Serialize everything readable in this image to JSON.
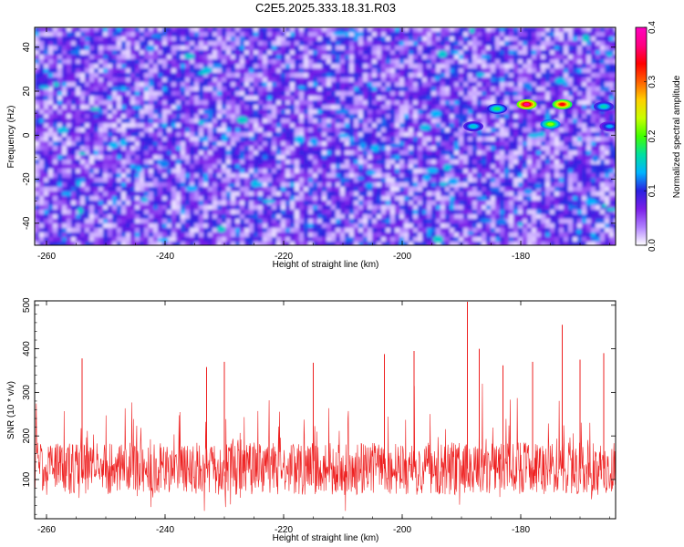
{
  "figure_title": "C2E5.2025.333.18.31.R03",
  "chart_data": [
    {
      "type": "heatmap",
      "xlabel": "Height of straight line (km)",
      "ylabel": "Frequency (Hz)",
      "xlim": [
        -262,
        -164
      ],
      "ylim": [
        -50,
        49
      ],
      "x_ticks": [
        -260,
        -240,
        -220,
        -200,
        -180
      ],
      "y_ticks": [
        40,
        20,
        0,
        -20,
        -40
      ],
      "x_tick_labels": [
        "-260",
        "-240",
        "-220",
        "-200",
        "-180"
      ],
      "y_tick_labels": [
        "40",
        "20",
        "0",
        "-20",
        "-40"
      ],
      "colorbar": {
        "label": "Normalized spectral amplitude",
        "range": [
          0.0,
          0.4
        ],
        "ticks": [
          0.0,
          0.1,
          0.2,
          0.3,
          0.4
        ],
        "tick_labels": [
          "0.0",
          "0.1",
          "0.2",
          "0.3",
          "0.4"
        ],
        "colors": [
          "#ffffff",
          "#b080ff",
          "#7a1ee8",
          "#2a20e0",
          "#00b4ff",
          "#00e0a0",
          "#40ff00",
          "#c8ff00",
          "#ffd000",
          "#ff6000",
          "#ff0000",
          "#ff0080",
          "#ff00c0"
        ]
      },
      "hotspots": [
        {
          "x": -179,
          "y": 14,
          "value": 0.38
        },
        {
          "x": -173,
          "y": 14,
          "value": 0.33
        },
        {
          "x": -175,
          "y": 5,
          "value": 0.22
        },
        {
          "x": -184,
          "y": 12,
          "value": 0.18
        },
        {
          "x": -188,
          "y": 4,
          "value": 0.15
        },
        {
          "x": -166,
          "y": 13,
          "value": 0.16
        },
        {
          "x": -165,
          "y": 4,
          "value": 0.13
        }
      ]
    },
    {
      "type": "line",
      "xlabel": "Height of straight line (km)",
      "ylabel": "SNR (10 * v/v)",
      "xlim": [
        -262,
        -164
      ],
      "ylim": [
        10,
        510
      ],
      "x_ticks": [
        -260,
        -240,
        -220,
        -200,
        -180
      ],
      "y_ticks": [
        500,
        400,
        300,
        200,
        100
      ],
      "x_tick_labels": [
        "-260",
        "-240",
        "-220",
        "-200",
        "-180"
      ],
      "y_tick_labels": [
        "500",
        "400",
        "300",
        "200",
        "100"
      ],
      "series": [
        {
          "name": "SNR",
          "color": "#ee2020",
          "baseline_mean": 125,
          "noise_spread": 60,
          "peaks": [
            {
              "x": -254,
              "y": 378
            },
            {
              "x": -233,
              "y": 358
            },
            {
              "x": -230,
              "y": 370
            },
            {
              "x": -215,
              "y": 368
            },
            {
              "x": -203,
              "y": 388
            },
            {
              "x": -198,
              "y": 395
            },
            {
              "x": -189,
              "y": 508
            },
            {
              "x": -187,
              "y": 400
            },
            {
              "x": -183,
              "y": 362
            },
            {
              "x": -178,
              "y": 370
            },
            {
              "x": -173,
              "y": 455
            },
            {
              "x": -170,
              "y": 375
            },
            {
              "x": -166,
              "y": 390
            }
          ]
        }
      ]
    }
  ]
}
